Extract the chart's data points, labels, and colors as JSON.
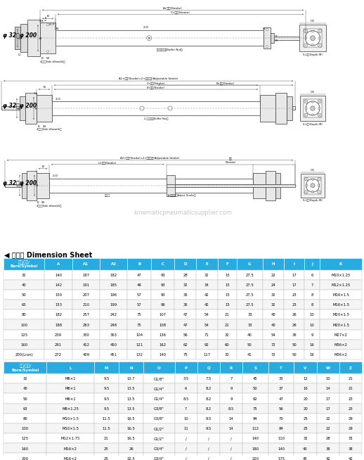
{
  "header1": [
    "内径/符号/\nBore/Symbol",
    "A",
    "A1",
    "A2",
    "B",
    "C",
    "D",
    "E",
    "F",
    "G",
    "H",
    "I",
    "J",
    "K"
  ],
  "rows1": [
    [
      "32",
      "140",
      "187",
      "182",
      "47",
      "93",
      "28",
      "32",
      "15",
      "27.5",
      "22",
      "17",
      "6",
      "M10×1.25"
    ],
    [
      "40",
      "142",
      "191",
      "185",
      "49",
      "93",
      "32",
      "34",
      "15",
      "27.5",
      "24",
      "17",
      "7",
      "M12×1.25"
    ],
    [
      "50",
      "150",
      "207",
      "196",
      "57",
      "93",
      "36",
      "42",
      "15",
      "27.5",
      "32",
      "23",
      "8",
      "M16×1.5"
    ],
    [
      "63",
      "153",
      "210",
      "199",
      "57",
      "96",
      "36",
      "42",
      "15",
      "27.5",
      "32",
      "23",
      "8",
      "M16×1.5"
    ],
    [
      "80",
      "182",
      "257",
      "242",
      "75",
      "107",
      "47",
      "54",
      "21",
      "33",
      "40",
      "26",
      "10",
      "M20×1.5"
    ],
    [
      "100",
      "188",
      "263",
      "248",
      "75",
      "108",
      "47",
      "54",
      "21",
      "33",
      "40",
      "26",
      "10",
      "M20×1.5"
    ],
    [
      "125",
      "239",
      "330",
      "363",
      "104",
      "136",
      "56",
      "71",
      "32",
      "40",
      "54",
      "36",
      "9",
      "M27×2"
    ],
    [
      "160",
      "291",
      "412",
      "450",
      "121",
      "162",
      "62",
      "92",
      "60",
      "50",
      "72",
      "50",
      "16",
      "M36×2"
    ],
    [
      "200(Lron)",
      "272",
      "409",
      "451",
      "132",
      "140",
      "75",
      "117",
      "30",
      "41",
      "72",
      "50",
      "16",
      "M36×2"
    ]
  ],
  "header2": [
    "内径/符号/\nBore/Symbol",
    "L",
    "M",
    "N",
    "O",
    "P",
    "Q",
    "R",
    "S",
    "T",
    "V",
    "W",
    "Z"
  ],
  "rows2": [
    [
      "32",
      "M6×1",
      "9.5",
      "13.7",
      "G1/8\"",
      "3.5",
      "7.5",
      "7",
      "45",
      "33",
      "12",
      "10",
      "21"
    ],
    [
      "40",
      "M6×1",
      "9.5",
      "13.5",
      "G1/4\"",
      "6",
      "8.2",
      "9",
      "50",
      "37",
      "16",
      "14",
      "21"
    ],
    [
      "50",
      "M6×1",
      "9.5",
      "13.5",
      "G1/4\"",
      "8.5",
      "8.2",
      "9",
      "62",
      "47",
      "20",
      "17",
      "23"
    ],
    [
      "63",
      "M8×1.25",
      "9.5",
      "13.5",
      "G3/8\"",
      "7",
      "8.2",
      "8.5",
      "75",
      "56",
      "20",
      "17",
      "23"
    ],
    [
      "80",
      "M10×1.5",
      "11.5",
      "16.5",
      "G3/8\"",
      "10",
      "9.5",
      "14",
      "94",
      "70",
      "25",
      "22",
      "29"
    ],
    [
      "100",
      "M10×1.5",
      "11.5",
      "16.5",
      "G1/2\"",
      "11",
      "9.5",
      "14",
      "112",
      "84",
      "25",
      "22",
      "29"
    ],
    [
      "125",
      "M12×1.75",
      "21",
      "16.5",
      "G1/2\"",
      "/",
      "/",
      "/",
      "140",
      "110",
      "32",
      "28",
      "33"
    ],
    [
      "160",
      "M16×2",
      "25",
      "26",
      "G3/4\"",
      "/",
      "/",
      "/",
      "180",
      "140",
      "40",
      "38",
      "38"
    ],
    [
      "200",
      "M16×2",
      "25",
      "22.5",
      "G3/4\"",
      "/",
      "/",
      "/",
      "220",
      "175",
      "45",
      "42",
      "42"
    ]
  ],
  "header_bg": "#29ABE2",
  "header_text": "#FFFFFF",
  "row_bg_even": "#FFFFFF",
  "row_bg_odd": "#F5F5F5"
}
